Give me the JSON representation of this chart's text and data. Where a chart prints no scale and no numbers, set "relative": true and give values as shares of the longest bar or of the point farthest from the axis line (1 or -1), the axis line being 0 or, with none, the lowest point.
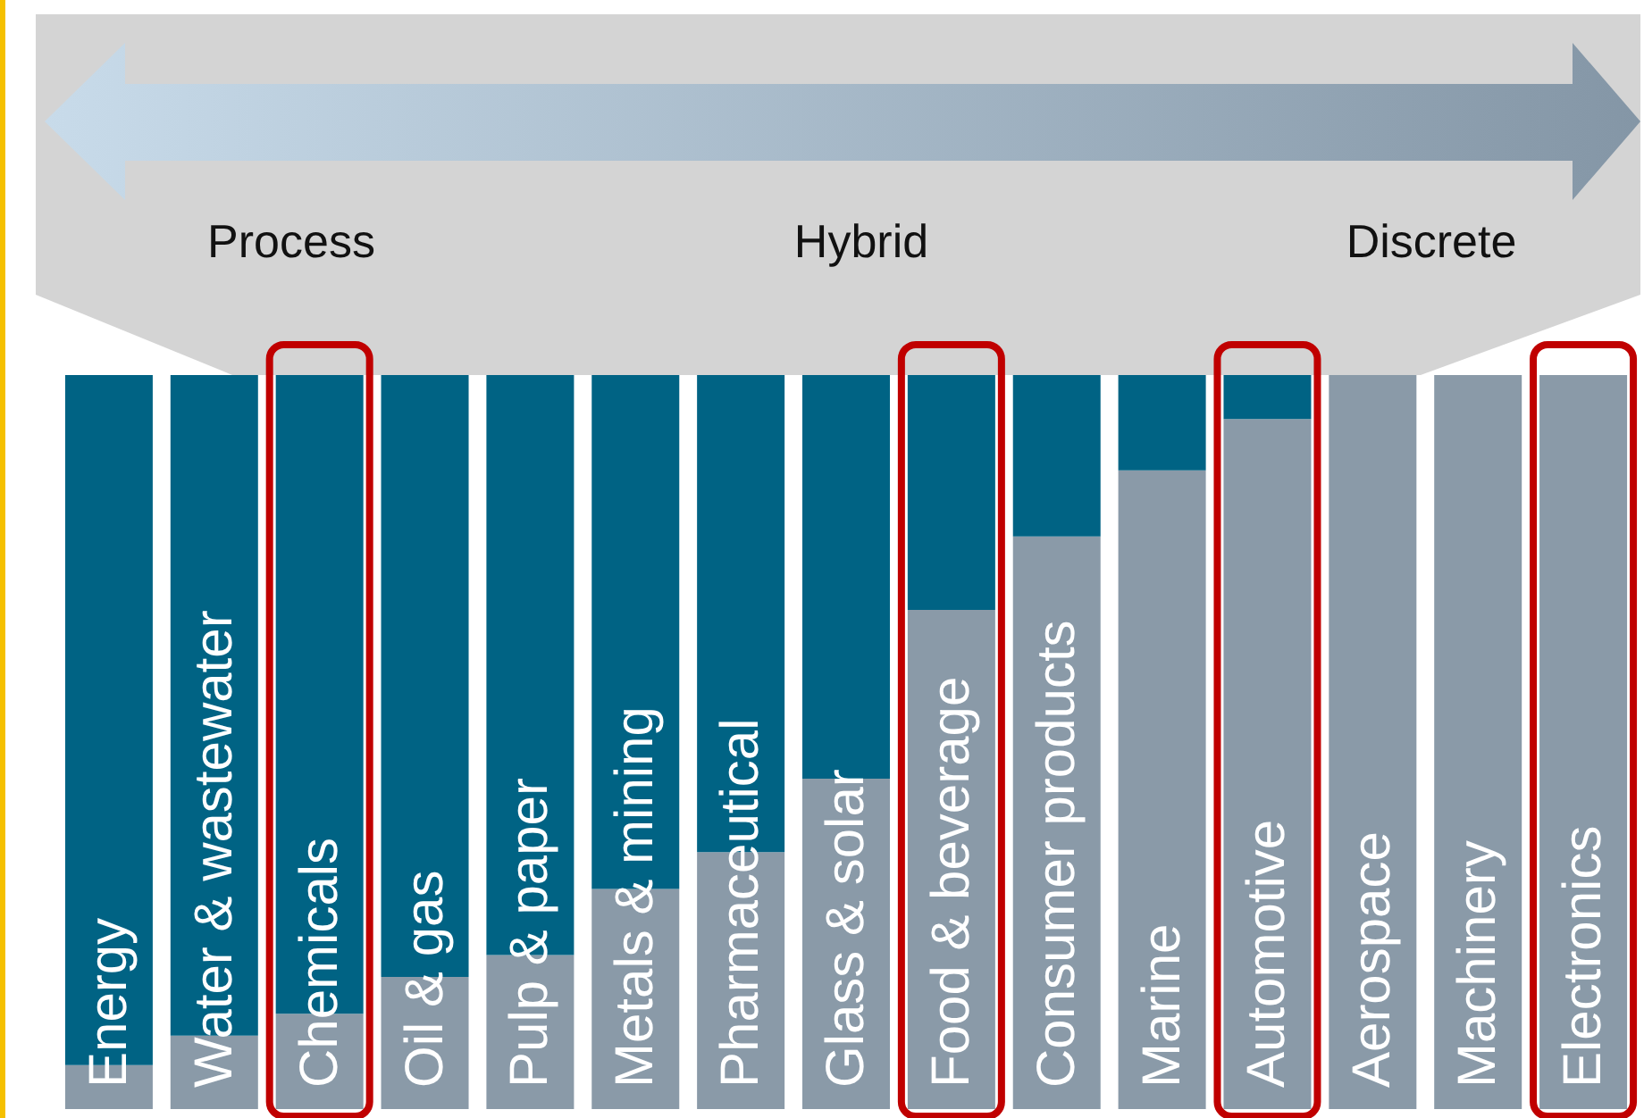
{
  "chart_data": {
    "type": "bar",
    "stacked": true,
    "relative": true,
    "grid": false,
    "categories": [
      "Energy",
      "Water & wastewater",
      "Chemicals",
      "Oil & gas",
      "Pulp & paper",
      "Metals & mining",
      "Pharmaceutical",
      "Glass & solar",
      "Food & beverage",
      "Consumer products",
      "Marine",
      "Automotive",
      "Aerospace",
      "Machinery",
      "Electronics"
    ],
    "series": [
      {
        "color": "#8a9aa8",
        "values": [
          0.06,
          0.1,
          0.13,
          0.18,
          0.21,
          0.3,
          0.35,
          0.45,
          0.68,
          0.78,
          0.87,
          0.94,
          1,
          1,
          1
        ]
      },
      {
        "color": "#006384",
        "values": [
          0.94,
          0.9,
          0.87,
          0.82,
          0.79,
          0.7,
          0.65,
          0.55,
          0.32,
          0.22,
          0.13,
          0.06,
          0,
          0,
          0
        ]
      }
    ],
    "annotations": [
      "Process",
      "Hybrid",
      "Discrete"
    ]
  }
}
